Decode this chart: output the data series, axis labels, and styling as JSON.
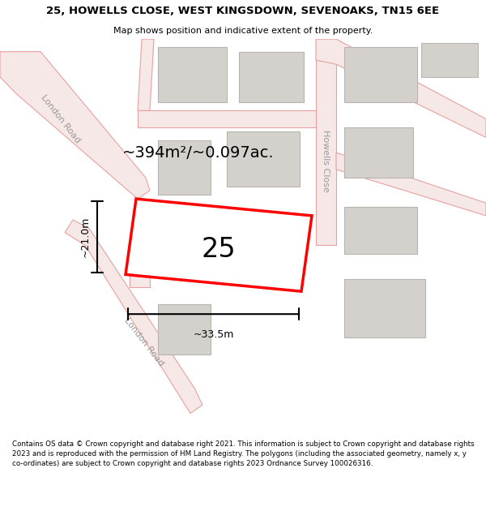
{
  "title": "25, HOWELLS CLOSE, WEST KINGSDOWN, SEVENOAKS, TN15 6EE",
  "subtitle": "Map shows position and indicative extent of the property.",
  "footnote": "Contains OS data © Crown copyright and database right 2021. This information is subject to Crown copyright and database rights 2023 and is reproduced with the permission of HM Land Registry. The polygons (including the associated geometry, namely x, y co-ordinates) are subject to Crown copyright and database rights 2023 Ordnance Survey 100026316.",
  "map_bg": "#ede8e3",
  "road_fill": "#f7e8e8",
  "road_edge": "#e8a0a0",
  "building_fill": "#d4d0cc",
  "building_edge": "#b8b4b0",
  "plot_color": "#ff0000",
  "plot_fill": "#ffffff",
  "area_text": "~394m²/~0.097ac.",
  "number_text": "25",
  "dim_width": "~33.5m",
  "dim_height": "~21.0m",
  "road1_label": "London Road",
  "road2_label": "Howells Close",
  "road3_label": "London Road"
}
